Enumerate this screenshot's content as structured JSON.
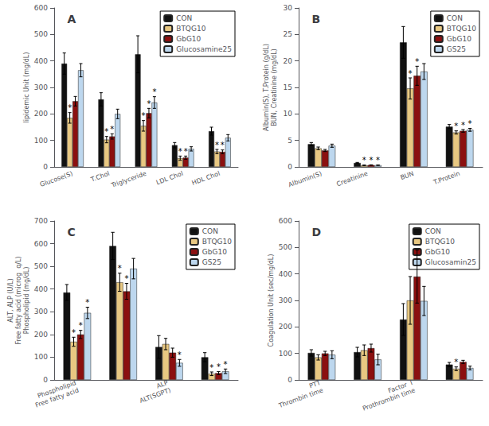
{
  "chart_data": [
    {
      "type": "bar",
      "title": "A",
      "ylabel": "lipidemic Unit (mg/dL)",
      "categories": [
        "Glucose(S)",
        "T.Chol",
        "Triglyceride",
        "LDL Chol",
        "HDL Chol"
      ],
      "series": [
        {
          "name": "CON",
          "color": "#111111",
          "values": [
            390,
            255,
            425,
            82,
            135
          ],
          "errors": [
            40,
            25,
            70,
            10,
            15
          ]
        },
        {
          "name": "BTQG10",
          "color": "#E8C882",
          "values": [
            185,
            103,
            155,
            33,
            58
          ],
          "errors": [
            20,
            12,
            20,
            8,
            8
          ],
          "annotations": [
            "*",
            "*",
            "*",
            "*",
            "*"
          ]
        },
        {
          "name": "GbG10",
          "color": "#8B1010",
          "values": [
            248,
            115,
            203,
            35,
            57
          ],
          "errors": [
            18,
            10,
            18,
            6,
            7
          ],
          "annotations": [
            null,
            "*",
            "*",
            "*",
            "*"
          ]
        },
        {
          "name": "Glucosamine25",
          "color": "#BDD7EE",
          "values": [
            365,
            200,
            243,
            68,
            110
          ],
          "errors": [
            25,
            18,
            22,
            8,
            12
          ],
          "annotations": [
            null,
            null,
            "*",
            null,
            null
          ]
        }
      ],
      "ylim": [
        0,
        600
      ],
      "yticks": [
        0,
        100,
        200,
        300,
        400,
        500,
        600
      ],
      "grid": false,
      "legend": "upper right"
    },
    {
      "type": "bar",
      "title": "B",
      "ylabel": "Albumin(S), T.Protein (g/dL)\nBUN, Creatinine (mg/dL)",
      "categories": [
        "Albumin(S)",
        "Creatinine",
        "BUN",
        "T.Protein"
      ],
      "series": [
        {
          "name": "CON",
          "color": "#111111",
          "values": [
            4.3,
            0.75,
            23.5,
            7.6
          ],
          "errors": [
            0.3,
            0.1,
            3.0,
            0.4
          ]
        },
        {
          "name": "BTQG10",
          "color": "#E8C882",
          "values": [
            3.5,
            0.3,
            14.8,
            6.5
          ],
          "errors": [
            0.25,
            0.05,
            2.0,
            0.3
          ],
          "annotations": [
            null,
            "*",
            "*",
            "*"
          ]
        },
        {
          "name": "GbG10",
          "color": "#8B1010",
          "values": [
            3.1,
            0.35,
            17.2,
            6.8
          ],
          "errors": [
            0.2,
            0.04,
            1.8,
            0.25
          ],
          "annotations": [
            null,
            "*",
            "*",
            "*"
          ]
        },
        {
          "name": "GS25",
          "color": "#BDD7EE",
          "values": [
            4.0,
            0.32,
            18.0,
            7.0
          ],
          "errors": [
            0.3,
            0.04,
            1.5,
            0.28
          ],
          "annotations": [
            null,
            "*",
            null,
            "*"
          ]
        }
      ],
      "ylim": [
        0,
        30
      ],
      "yticks": [
        0,
        5,
        10,
        15,
        20,
        25,
        30
      ],
      "grid": false,
      "legend": "upper right"
    },
    {
      "type": "bar",
      "title": "C",
      "ylabel": "ALT, ALP (U/L)\nFree fatty acid (microg  q/L)\nPhospholipid (mg/dL)",
      "categories": [
        "Phospholipid\nFree fatty acid",
        null,
        "ALP\nALT(SGPT)",
        null
      ],
      "series": [
        {
          "name": "CON",
          "color": "#111111",
          "values": [
            385,
            590,
            145,
            100
          ],
          "errors": [
            35,
            60,
            50,
            20
          ]
        },
        {
          "name": "BTQG10",
          "color": "#E8C882",
          "values": [
            168,
            430,
            158,
            27
          ],
          "errors": [
            20,
            40,
            25,
            8
          ],
          "annotations": [
            "*",
            "*",
            null,
            "*"
          ]
        },
        {
          "name": "GbG10",
          "color": "#8B1010",
          "values": [
            200,
            390,
            120,
            30
          ],
          "errors": [
            18,
            35,
            20,
            7
          ],
          "annotations": [
            "*",
            "*",
            null,
            "*"
          ]
        },
        {
          "name": "GS25",
          "color": "#BDD7EE",
          "values": [
            295,
            490,
            75,
            38
          ],
          "errors": [
            25,
            45,
            15,
            10
          ],
          "annotations": [
            "*",
            null,
            "*",
            "*"
          ]
        }
      ],
      "ylim": [
        0,
        700
      ],
      "yticks": [
        0,
        100,
        200,
        300,
        400,
        500,
        600,
        700
      ],
      "grid": false,
      "legend": "upper right"
    },
    {
      "type": "bar",
      "title": "D",
      "ylabel": "Coagulation Unit (sec/mg/dL)",
      "categories": [
        "PTT\nThrombin time",
        null,
        "Factor  I\nProthrombin time",
        null
      ],
      "series": [
        {
          "name": "CON",
          "color": "#111111",
          "values": [
            102,
            105,
            228,
            58
          ],
          "errors": [
            12,
            18,
            60,
            8
          ]
        },
        {
          "name": "BTQG10",
          "color": "#E8C882",
          "values": [
            85,
            112,
            300,
            42
          ],
          "errors": [
            10,
            20,
            90,
            7
          ],
          "annotations": [
            null,
            null,
            null,
            "*"
          ]
        },
        {
          "name": "GbG10",
          "color": "#8B1010",
          "values": [
            100,
            120,
            390,
            68
          ],
          "errors": [
            8,
            15,
            100,
            6
          ]
        },
        {
          "name": "Glucosamin25",
          "color": "#BDD7EE",
          "values": [
            95,
            77,
            298,
            45
          ],
          "errors": [
            15,
            20,
            55,
            7
          ]
        }
      ],
      "ylim": [
        0,
        600
      ],
      "yticks": [
        0,
        100,
        200,
        300,
        400,
        500,
        600
      ],
      "grid": false,
      "legend": "upper right"
    }
  ]
}
